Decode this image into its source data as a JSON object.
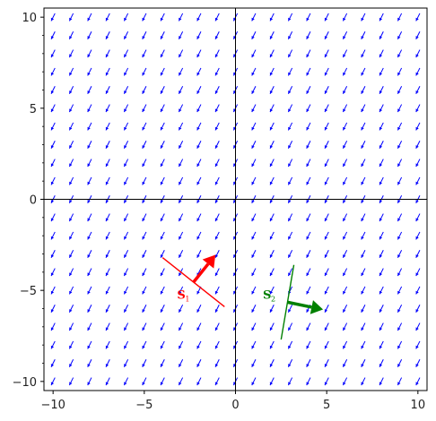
{
  "chart_data": {
    "type": "vector-field",
    "title": "",
    "xlabel": "",
    "ylabel": "",
    "xlim": [
      -10.5,
      10.5
    ],
    "ylim": [
      -10.5,
      10.5
    ],
    "xticks": [
      -10,
      -5,
      0,
      5,
      10
    ],
    "yticks": [
      -10,
      -5,
      0,
      5,
      10
    ],
    "xtick_labels": [
      "−10",
      "−5",
      "0",
      "5",
      "10"
    ],
    "ytick_labels": [
      "−10",
      "−5",
      "0",
      "5",
      "10"
    ],
    "grid": false,
    "field": {
      "color": "#0000ff",
      "direction": [
        -0.5,
        -1
      ],
      "grid_x": [
        -10,
        -9,
        -8,
        -7,
        -6,
        -5,
        -4,
        -3,
        -2,
        -1,
        0,
        1,
        2,
        3,
        4,
        5,
        6,
        7,
        8,
        9,
        10
      ],
      "grid_y": [
        -10,
        -9,
        -8,
        -7,
        -6,
        -5,
        -4,
        -3,
        -2,
        -1,
        0,
        1,
        2,
        3,
        4,
        5,
        6,
        7,
        8,
        9,
        10
      ]
    },
    "surfaces": [
      {
        "label": "S",
        "subscript": "1",
        "color": "#ff0000",
        "line": [
          [
            -4,
            -3.2
          ],
          [
            -0.6,
            -5.9
          ]
        ],
        "arrow_from": [
          -2.3,
          -4.55
        ],
        "arrow_to": [
          -1.1,
          -3.05
        ],
        "label_at": [
          -3.2,
          -5.45
        ]
      },
      {
        "label": "S",
        "subscript": "2",
        "color": "#008000",
        "line": [
          [
            3.2,
            -3.6
          ],
          [
            2.5,
            -7.7
          ]
        ],
        "arrow_from": [
          2.85,
          -5.65
        ],
        "arrow_to": [
          4.8,
          -6.05
        ],
        "label_at": [
          1.5,
          -5.45
        ]
      }
    ]
  }
}
